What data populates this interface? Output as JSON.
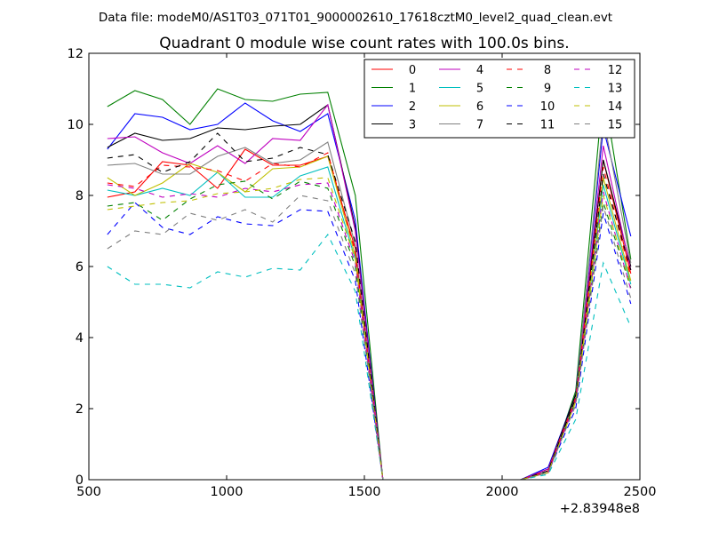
{
  "figure": {
    "suptitle": "Data file: modeM0/AS1T03_071T01_9000002610_17618cztM0_level2_quad_clean.evt"
  },
  "chart_data": {
    "type": "line",
    "title": "Quadrant 0 module wise count rates with 100.0s bins.",
    "xlabel": "",
    "ylabel": "",
    "x_offset_label": "+2.83948e8",
    "xlim": [
      500,
      2500
    ],
    "ylim": [
      0,
      12
    ],
    "xticks": [
      500,
      1000,
      1500,
      2000,
      2500
    ],
    "yticks": [
      0,
      2,
      4,
      6,
      8,
      10,
      12
    ],
    "grid": false,
    "legend_position": "top-right",
    "legend_columns": 4,
    "x": [
      567,
      667,
      767,
      867,
      967,
      1067,
      1167,
      1267,
      1367,
      1467,
      1567,
      1667,
      1767,
      1867,
      1967,
      2067,
      2167,
      2267,
      2367,
      2467
    ],
    "series": [
      {
        "name": "0",
        "color": "#ff0000",
        "style": "solid",
        "values": [
          7.95,
          8.1,
          8.95,
          8.85,
          8.2,
          9.3,
          8.85,
          8.85,
          9.1,
          6.5,
          0,
          0,
          0,
          0,
          0,
          0,
          0.3,
          2.3,
          9.0,
          5.8
        ]
      },
      {
        "name": "1",
        "color": "#008000",
        "style": "solid",
        "values": [
          10.5,
          10.95,
          10.7,
          10.0,
          11.0,
          10.7,
          10.65,
          10.85,
          10.9,
          8.0,
          0,
          0,
          0,
          0,
          0,
          0,
          0.2,
          2.5,
          11.0,
          6.2
        ]
      },
      {
        "name": "2",
        "color": "#0000ff",
        "style": "solid",
        "values": [
          9.3,
          10.3,
          10.2,
          9.85,
          10.0,
          10.6,
          10.1,
          9.8,
          10.3,
          7.3,
          0,
          0,
          0,
          0,
          0,
          0,
          0.35,
          2.4,
          9.9,
          6.85
        ]
      },
      {
        "name": "3",
        "color": "#000000",
        "style": "solid",
        "values": [
          9.35,
          9.75,
          9.55,
          9.6,
          9.9,
          9.85,
          9.95,
          10.0,
          10.55,
          7.1,
          0,
          0,
          0,
          0,
          0,
          0,
          0.3,
          2.4,
          9.0,
          6.0
        ]
      },
      {
        "name": "4",
        "color": "#bf00bf",
        "style": "solid",
        "values": [
          9.6,
          9.65,
          9.2,
          8.9,
          9.4,
          8.9,
          9.6,
          9.55,
          10.55,
          7.0,
          0,
          0,
          0,
          0,
          0,
          0,
          0.3,
          2.3,
          9.4,
          5.9
        ]
      },
      {
        "name": "5",
        "color": "#00bfbf",
        "style": "solid",
        "values": [
          8.15,
          8.0,
          8.2,
          8.0,
          8.65,
          7.95,
          7.95,
          8.55,
          8.8,
          6.2,
          0,
          0,
          0,
          0,
          0,
          0,
          0.2,
          2.2,
          8.3,
          5.5
        ]
      },
      {
        "name": "6",
        "color": "#bfbf00",
        "style": "solid",
        "values": [
          8.5,
          8.0,
          8.35,
          8.9,
          8.65,
          8.1,
          8.75,
          8.8,
          9.1,
          6.3,
          0,
          0,
          0,
          0,
          0,
          0,
          0.2,
          2.2,
          8.5,
          5.6
        ]
      },
      {
        "name": "7",
        "color": "#808080",
        "style": "solid",
        "values": [
          8.85,
          8.9,
          8.6,
          8.6,
          9.1,
          9.35,
          8.9,
          9.0,
          9.5,
          6.6,
          0,
          0,
          0,
          0,
          0,
          0,
          0.25,
          2.3,
          10.2,
          6.1
        ]
      },
      {
        "name": "8",
        "color": "#ff0000",
        "style": "dashed",
        "values": [
          8.35,
          8.25,
          8.85,
          8.8,
          8.7,
          8.4,
          8.9,
          8.8,
          9.2,
          6.4,
          0,
          0,
          0,
          0,
          0,
          0,
          0.25,
          2.3,
          8.8,
          5.7
        ]
      },
      {
        "name": "9",
        "color": "#008000",
        "style": "dashed",
        "values": [
          7.7,
          7.8,
          7.3,
          7.9,
          8.3,
          8.4,
          7.9,
          8.4,
          8.2,
          6.0,
          0,
          0,
          0,
          0,
          0,
          0,
          0.2,
          2.2,
          7.8,
          5.4
        ]
      },
      {
        "name": "10",
        "color": "#0000ff",
        "style": "dashed",
        "values": [
          6.9,
          7.8,
          7.1,
          6.9,
          7.4,
          7.2,
          7.15,
          7.6,
          7.55,
          5.6,
          0,
          0,
          0,
          0,
          0,
          0,
          0.2,
          2.0,
          7.5,
          4.95
        ]
      },
      {
        "name": "11",
        "color": "#000000",
        "style": "dashed",
        "values": [
          9.05,
          9.15,
          8.65,
          8.95,
          9.75,
          8.95,
          9.05,
          9.35,
          9.15,
          6.7,
          0,
          0,
          0,
          0,
          0,
          0,
          0.25,
          2.3,
          8.6,
          5.9
        ]
      },
      {
        "name": "12",
        "color": "#bf00bf",
        "style": "dashed",
        "values": [
          8.3,
          8.2,
          7.95,
          8.05,
          7.95,
          8.2,
          8.1,
          8.3,
          8.35,
          6.1,
          0,
          0,
          0,
          0,
          0,
          0,
          0.2,
          2.2,
          8.1,
          5.35
        ]
      },
      {
        "name": "13",
        "color": "#00bfbf",
        "style": "dashed",
        "values": [
          6.0,
          5.5,
          5.5,
          5.4,
          5.85,
          5.7,
          5.95,
          5.9,
          6.9,
          5.3,
          0,
          0,
          0,
          0,
          0,
          0,
          0.15,
          1.7,
          6.1,
          4.3
        ]
      },
      {
        "name": "14",
        "color": "#bfbf00",
        "style": "dashed",
        "values": [
          7.6,
          7.7,
          7.8,
          7.85,
          8.05,
          8.1,
          8.2,
          8.45,
          8.5,
          6.2,
          0,
          0,
          0,
          0,
          0,
          0,
          0.2,
          2.2,
          8.0,
          5.45
        ]
      },
      {
        "name": "15",
        "color": "#808080",
        "style": "dashed",
        "values": [
          6.5,
          7.0,
          6.9,
          7.5,
          7.3,
          7.6,
          7.25,
          8.0,
          7.85,
          5.8,
          0,
          0,
          0,
          0,
          0,
          0,
          0.2,
          2.1,
          7.7,
          5.1
        ]
      }
    ]
  }
}
